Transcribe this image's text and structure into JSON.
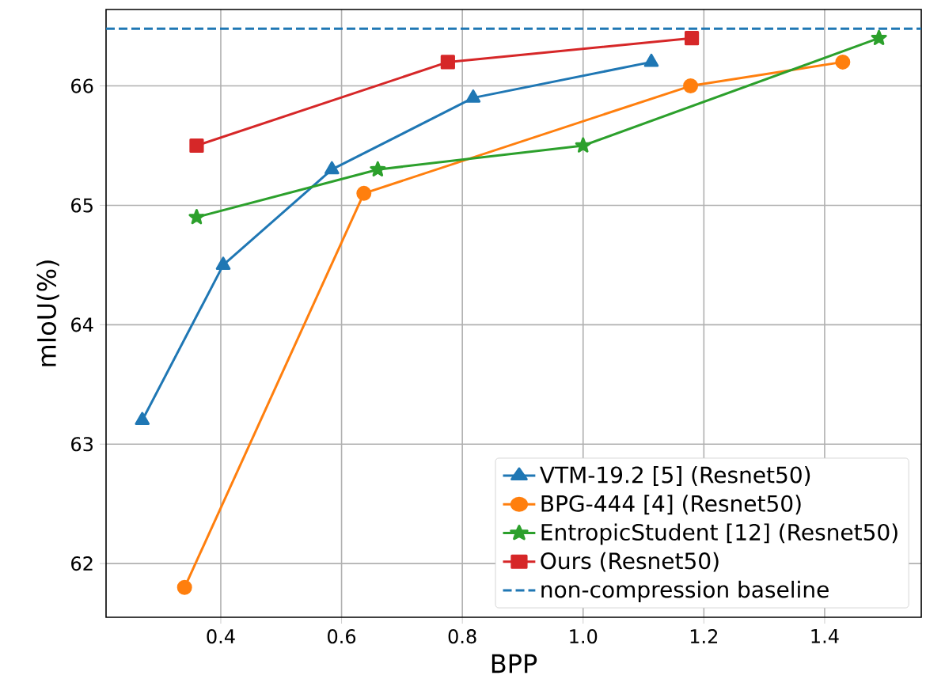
{
  "chart_data": {
    "type": "line",
    "xlabel": "BPP",
    "ylabel": "mIoU(%)",
    "xlim": [
      0.21,
      1.56
    ],
    "ylim": [
      61.55,
      66.64
    ],
    "xticks": [
      0.4,
      0.6,
      0.8,
      {
        "value": 1,
        "label": "1.0"
      },
      1.2,
      1.4
    ],
    "yticks": [
      62,
      63,
      64,
      65,
      66
    ],
    "grid": true,
    "legend": "bottom right",
    "series": [
      {
        "name": "VTM-19.2 [5] (Resnet50)",
        "color": "#1f77b4",
        "marker": "triangle",
        "x": [
          0.27,
          0.404,
          0.584,
          0.818,
          1.113
        ],
        "values": [
          63.2,
          64.5,
          65.3,
          65.9,
          66.2
        ]
      },
      {
        "name": "BPG-444 [4] (Resnet50)",
        "color": "#ff7f0e",
        "marker": "circle",
        "x": [
          0.34,
          0.637,
          1.178,
          1.43
        ],
        "values": [
          61.8,
          65.1,
          66.0,
          66.2
        ]
      },
      {
        "name": "EntropicStudent [12] (Resnet50)",
        "color": "#2ca02c",
        "marker": "star",
        "x": [
          0.36,
          0.66,
          1.0,
          1.49
        ],
        "values": [
          64.9,
          65.3,
          65.5,
          66.4
        ]
      },
      {
        "name": "Ours (Resnet50)",
        "color": "#d62728",
        "marker": "square",
        "x": [
          0.36,
          0.776,
          1.18
        ],
        "values": [
          65.5,
          66.2,
          66.4
        ]
      }
    ],
    "ref_lines": [
      {
        "axis": "y",
        "value": 66.48,
        "label": "non-compression baseline",
        "color": "#1f77b4",
        "line_style": "dashed"
      }
    ]
  }
}
